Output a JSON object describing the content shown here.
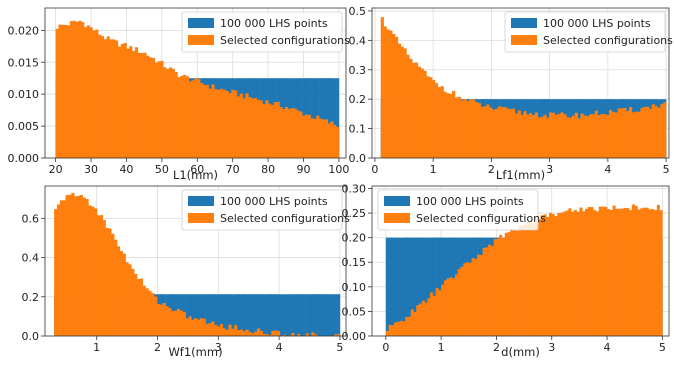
{
  "colors": {
    "lhs": "#1f77b4",
    "selected": "#ff7f0e",
    "grid": "#dcdcdc",
    "axis": "#333333"
  },
  "legend": {
    "lhs_label": "100 000 LHS points",
    "selected_label": "Selected configurations"
  },
  "chart_data": [
    {
      "type": "bar",
      "xlabel": "L1(mm)",
      "xlim": [
        17,
        102
      ],
      "ylim": [
        0,
        0.0235
      ],
      "xticks": [
        20,
        30,
        40,
        50,
        60,
        70,
        80,
        90,
        100
      ],
      "xtick_labels": [
        "20",
        "30",
        "40",
        "50",
        "60",
        "70",
        "80",
        "90",
        "100"
      ],
      "yticks": [
        0,
        0.005,
        0.01,
        0.015,
        0.02
      ],
      "ytick_labels": [
        "0.000",
        "0.005",
        "0.010",
        "0.015",
        "0.020"
      ],
      "grid": true,
      "legend_position": "top-right",
      "series": [
        {
          "name": "100 000 LHS points",
          "range": [
            20,
            100
          ],
          "points": [
            [
              20,
              0.0125
            ],
            [
              100,
              0.0125
            ]
          ]
        },
        {
          "name": "Selected configurations",
          "range": [
            20,
            100
          ],
          "points": [
            [
              20,
              0.0205
            ],
            [
              27,
              0.0215
            ],
            [
              35,
              0.0185
            ],
            [
              45,
              0.0165
            ],
            [
              55,
              0.013
            ],
            [
              65,
              0.011
            ],
            [
              75,
              0.0095
            ],
            [
              85,
              0.008
            ],
            [
              95,
              0.006
            ],
            [
              100,
              0.005
            ]
          ]
        }
      ]
    },
    {
      "type": "bar",
      "xlabel": "Lf1(mm)",
      "xlim": [
        -0.05,
        5.05
      ],
      "ylim": [
        0,
        0.51
      ],
      "xticks": [
        0,
        1,
        2,
        3,
        4,
        5
      ],
      "xtick_labels": [
        "0",
        "1",
        "2",
        "3",
        "4",
        "5"
      ],
      "yticks": [
        0,
        0.1,
        0.2,
        0.3,
        0.4,
        0.5
      ],
      "ytick_labels": [
        "0.0",
        "0.1",
        "0.2",
        "0.3",
        "0.4",
        "0.5"
      ],
      "grid": true,
      "legend_position": "top-right",
      "series": [
        {
          "name": "100 000 LHS points",
          "range": [
            0.1,
            5
          ],
          "points": [
            [
              0.1,
              0.2
            ],
            [
              5,
              0.2
            ]
          ]
        },
        {
          "name": "Selected configurations",
          "range": [
            0.1,
            5
          ],
          "points": [
            [
              0.1,
              0.48
            ],
            [
              0.3,
              0.42
            ],
            [
              0.6,
              0.34
            ],
            [
              1,
              0.26
            ],
            [
              1.5,
              0.2
            ],
            [
              2,
              0.17
            ],
            [
              2.5,
              0.155
            ],
            [
              3,
              0.145
            ],
            [
              3.5,
              0.145
            ],
            [
              4,
              0.155
            ],
            [
              4.5,
              0.165
            ],
            [
              5,
              0.185
            ]
          ]
        }
      ]
    },
    {
      "type": "bar",
      "xlabel": "Wf1(mm)",
      "xlim": [
        0.15,
        5.1
      ],
      "ylim": [
        0,
        0.765
      ],
      "xticks": [
        1,
        2,
        3,
        4,
        5
      ],
      "xtick_labels": [
        "1",
        "2",
        "3",
        "4",
        "5"
      ],
      "yticks": [
        0,
        0.2,
        0.4,
        0.6
      ],
      "ytick_labels": [
        "0.0",
        "0.2",
        "0.4",
        "0.6"
      ],
      "grid": true,
      "legend_position": "top-right",
      "series": [
        {
          "name": "100 000 LHS points",
          "range": [
            0.3,
            5
          ],
          "points": [
            [
              0.3,
              0.213
            ],
            [
              5,
              0.213
            ]
          ]
        },
        {
          "name": "Selected configurations",
          "range": [
            0.3,
            5
          ],
          "points": [
            [
              0.3,
              0.63
            ],
            [
              0.5,
              0.72
            ],
            [
              0.8,
              0.71
            ],
            [
              1,
              0.64
            ],
            [
              1.3,
              0.5
            ],
            [
              1.6,
              0.33
            ],
            [
              2,
              0.18
            ],
            [
              2.5,
              0.1
            ],
            [
              3,
              0.055
            ],
            [
              3.5,
              0.03
            ],
            [
              4,
              0.012
            ],
            [
              4.5,
              0.004
            ],
            [
              5,
              0.0
            ]
          ]
        }
      ]
    },
    {
      "type": "bar",
      "xlabel": "d(mm)",
      "xlim": [
        -0.25,
        5.12
      ],
      "ylim": [
        0,
        0.305
      ],
      "xticks": [
        0,
        1,
        2,
        3,
        4,
        5
      ],
      "xtick_labels": [
        "0",
        "1",
        "2",
        "3",
        "4",
        "5"
      ],
      "yticks": [
        0,
        0.05,
        0.1,
        0.15,
        0.2,
        0.25,
        0.3
      ],
      "ytick_labels": [
        "0.00",
        "0.05",
        "0.10",
        "0.15",
        "0.20",
        "0.25",
        "0.30"
      ],
      "grid": true,
      "legend_position": "top-left",
      "series": [
        {
          "name": "100 000 LHS points",
          "range": [
            0,
            5
          ],
          "points": [
            [
              0,
              0.2
            ],
            [
              5,
              0.2
            ]
          ]
        },
        {
          "name": "Selected configurations",
          "range": [
            0,
            5
          ],
          "points": [
            [
              0,
              0.01
            ],
            [
              0.5,
              0.05
            ],
            [
              1,
              0.1
            ],
            [
              1.5,
              0.15
            ],
            [
              2,
              0.195
            ],
            [
              2.5,
              0.228
            ],
            [
              3,
              0.248
            ],
            [
              3.5,
              0.258
            ],
            [
              4,
              0.26
            ],
            [
              4.5,
              0.262
            ],
            [
              5,
              0.26
            ]
          ]
        }
      ]
    }
  ]
}
